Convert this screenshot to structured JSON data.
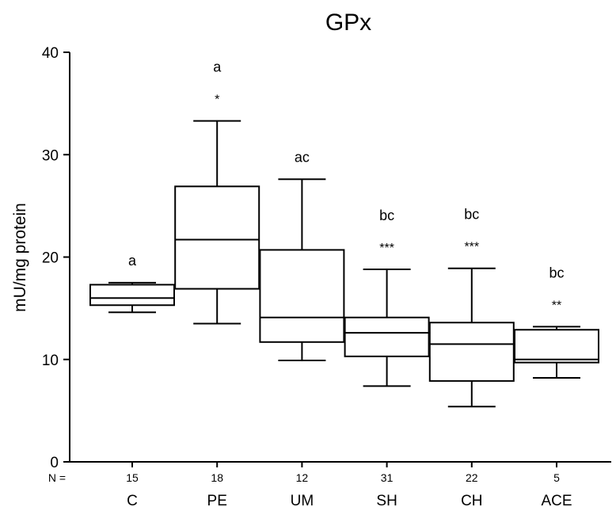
{
  "chart_data": {
    "type": "box",
    "title": "GPx",
    "ylabel": "mU/mg protein",
    "xlabel": "",
    "ylim": [
      0,
      40
    ],
    "yticks": [
      0,
      10,
      20,
      30,
      40
    ],
    "n_label": "N =",
    "grid": false,
    "groups": [
      {
        "name": "C",
        "n": "15",
        "whisker_low": 14.6,
        "q1": 15.3,
        "median": 16.0,
        "q3": 17.3,
        "whisker_high": 17.5,
        "sig_top": "a",
        "sig_bottom": ""
      },
      {
        "name": "PE",
        "n": "18",
        "whisker_low": 13.5,
        "q1": 16.9,
        "median": 21.7,
        "q3": 26.9,
        "whisker_high": 33.3,
        "sig_top": "a",
        "sig_bottom": "*"
      },
      {
        "name": "UM",
        "n": "12",
        "whisker_low": 9.9,
        "q1": 11.7,
        "median": 14.1,
        "q3": 20.7,
        "whisker_high": 27.6,
        "sig_top": "ac",
        "sig_bottom": ""
      },
      {
        "name": "SH",
        "n": "31",
        "whisker_low": 7.4,
        "q1": 10.3,
        "median": 12.6,
        "q3": 14.1,
        "whisker_high": 18.8,
        "sig_top": "bc",
        "sig_bottom": "***"
      },
      {
        "name": "CH",
        "n": "22",
        "whisker_low": 5.4,
        "q1": 7.9,
        "median": 11.5,
        "q3": 13.6,
        "whisker_high": 18.9,
        "sig_top": "bc",
        "sig_bottom": "***"
      },
      {
        "name": "ACE",
        "n": "5",
        "whisker_low": 8.2,
        "q1": 9.7,
        "median": 10.0,
        "q3": 12.9,
        "whisker_high": 13.2,
        "sig_top": "bc",
        "sig_bottom": "**"
      }
    ]
  }
}
